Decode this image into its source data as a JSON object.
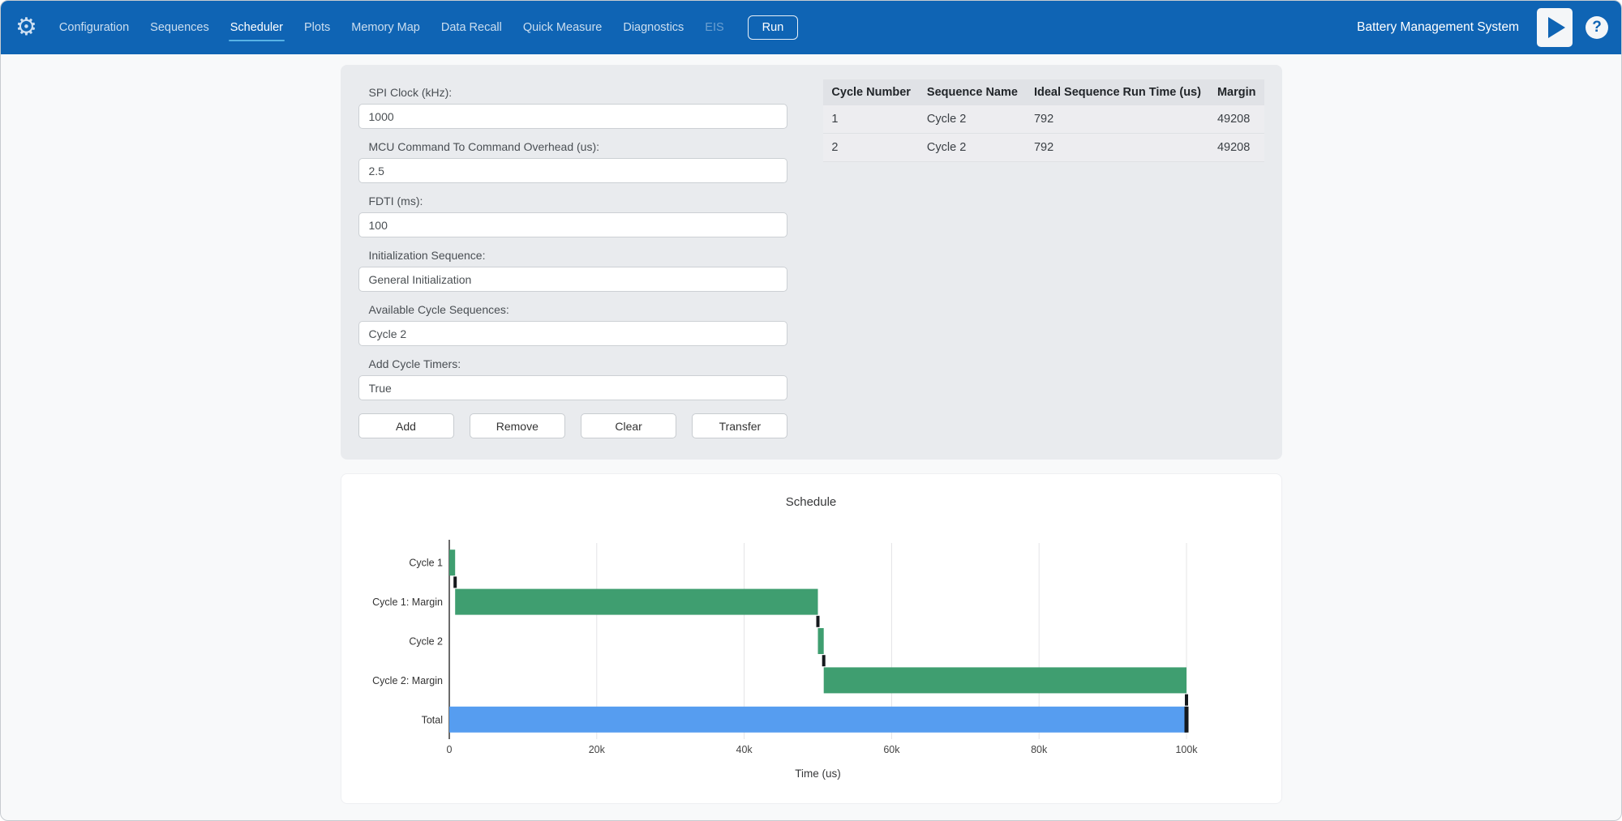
{
  "nav": {
    "items": [
      {
        "label": "Configuration",
        "state": "normal"
      },
      {
        "label": "Sequences",
        "state": "normal"
      },
      {
        "label": "Scheduler",
        "state": "active"
      },
      {
        "label": "Plots",
        "state": "normal"
      },
      {
        "label": "Memory Map",
        "state": "normal"
      },
      {
        "label": "Data Recall",
        "state": "normal"
      },
      {
        "label": "Quick Measure",
        "state": "normal"
      },
      {
        "label": "Diagnostics",
        "state": "normal"
      },
      {
        "label": "EIS",
        "state": "disabled"
      }
    ],
    "run_label": "Run",
    "brand": "Battery Management System",
    "icons": [
      "gear-icon",
      "play-icon",
      "help-icon"
    ]
  },
  "form": {
    "fields": [
      {
        "label": "SPI Clock (kHz):",
        "value": "1000"
      },
      {
        "label": "MCU Command To Command Overhead (us):",
        "value": "2.5"
      },
      {
        "label": "FDTI (ms):",
        "value": "100"
      },
      {
        "label": "Initialization Sequence:",
        "value": "General Initialization"
      },
      {
        "label": "Available Cycle Sequences:",
        "value": "Cycle 2"
      },
      {
        "label": "Add Cycle Timers:",
        "value": "True"
      }
    ],
    "buttons": [
      "Add",
      "Remove",
      "Clear",
      "Transfer"
    ]
  },
  "table": {
    "headers": [
      "Cycle Number",
      "Sequence Name",
      "Ideal Sequence Run Time (us)",
      "Margin"
    ],
    "rows": [
      [
        "1",
        "Cycle 2",
        "792",
        "49208"
      ],
      [
        "2",
        "Cycle 2",
        "792",
        "49208"
      ]
    ]
  },
  "chart_data": {
    "type": "bar",
    "orientation": "horizontal",
    "title": "Schedule",
    "xlabel": "Time (us)",
    "categories": [
      "Cycle 1",
      "Cycle 1: Margin",
      "Cycle 2",
      "Cycle 2: Margin",
      "Total"
    ],
    "bars": [
      {
        "label": "Cycle 1",
        "start": 0,
        "end": 792,
        "color": "#3f9e70",
        "connector": true
      },
      {
        "label": "Cycle 1: Margin",
        "start": 792,
        "end": 50000,
        "color": "#3f9e70",
        "connector": true
      },
      {
        "label": "Cycle 2",
        "start": 50000,
        "end": 50792,
        "color": "#3f9e70",
        "connector": true
      },
      {
        "label": "Cycle 2: Margin",
        "start": 50792,
        "end": 100000,
        "color": "#3f9e70",
        "connector": true
      },
      {
        "label": "Total",
        "start": 0,
        "end": 100000,
        "color": "#569df0",
        "end_cap": true
      }
    ],
    "xlim": [
      0,
      100000
    ],
    "xticks": [
      0,
      20000,
      40000,
      60000,
      80000,
      100000
    ],
    "xtick_labels": [
      "0",
      "20k",
      "40k",
      "60k",
      "80k",
      "100k"
    ],
    "grid": true,
    "legend": "none"
  },
  "colors": {
    "topbar": "#0f64b4",
    "active_underline": "#57b3e6",
    "bar_green": "#3f9e70",
    "bar_blue": "#569df0",
    "connector_black": "#15191d"
  }
}
